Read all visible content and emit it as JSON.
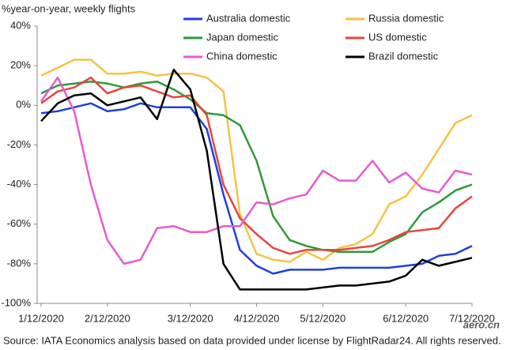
{
  "chart_data": {
    "type": "line",
    "y_label": "%year-on-year, weekly flights",
    "source": "Source: IATA Economics analysis based on data provided under license by FlightRadar24. All rights reserved.",
    "watermark": "aero.cn",
    "categories": [
      "1/12/2020",
      null,
      null,
      null,
      "2/12/2020",
      null,
      null,
      null,
      null,
      "3/12/2020",
      null,
      null,
      null,
      "4/12/2020",
      null,
      null,
      null,
      "5/12/2020",
      null,
      null,
      null,
      null,
      "6/12/2020",
      null,
      null,
      null,
      "7/12/2020"
    ],
    "ylim": [
      -100,
      40
    ],
    "yticks": [
      {
        "value": -100,
        "label": "-100%"
      },
      {
        "value": -80,
        "label": "-80%"
      },
      {
        "value": -60,
        "label": "-60%"
      },
      {
        "value": -40,
        "label": "-40%"
      },
      {
        "value": -20,
        "label": "-20%"
      },
      {
        "value": 0,
        "label": "0%"
      },
      {
        "value": 20,
        "label": "20%"
      },
      {
        "value": 40,
        "label": "40%"
      }
    ],
    "series": [
      {
        "name": "Australia domestic",
        "color": "#1f3fe0",
        "values": [
          -4,
          -3,
          -1,
          1,
          -3,
          -2,
          1,
          -1,
          -1,
          -1,
          -12,
          -45,
          -73,
          -81,
          -85,
          -83,
          -83,
          -83,
          -82,
          -82,
          -82,
          -82,
          -81,
          -80,
          -76,
          -75,
          -71
        ]
      },
      {
        "name": "Russia domestic",
        "color": "#f5c242",
        "values": [
          15,
          19,
          23,
          23,
          16,
          16,
          17,
          15,
          16,
          16,
          14,
          7,
          -55,
          -75,
          -78,
          -79,
          -74,
          -78,
          -72,
          -70,
          -65,
          -50,
          -46,
          -35,
          -22,
          -9,
          -5
        ]
      },
      {
        "name": "Japan domestic",
        "color": "#2e9a3a",
        "values": [
          6,
          10,
          11,
          12,
          11,
          9,
          11,
          12,
          8,
          3,
          -4,
          -5,
          -10,
          -28,
          -56,
          -68,
          -71,
          -73,
          -74,
          -74,
          -74,
          -69,
          -65,
          -54,
          -49,
          -43,
          -40
        ]
      },
      {
        "name": "US domestic",
        "color": "#e8453c",
        "values": [
          1,
          7,
          9,
          14,
          6,
          9,
          10,
          7,
          4,
          5,
          -5,
          -40,
          -57,
          -65,
          -72,
          -75,
          -73,
          -73,
          -73,
          -72,
          -71,
          -68,
          -64,
          -63,
          -62,
          -52,
          -46
        ]
      },
      {
        "name": "China domestic",
        "color": "#e85ad0",
        "values": [
          2,
          14,
          -3,
          -40,
          -68,
          -80,
          -78,
          -62,
          -61,
          -64,
          -64,
          -61,
          -61,
          -49,
          -50,
          -47,
          -45,
          -33,
          -38,
          -38,
          -28,
          -39,
          -34,
          -42,
          -44,
          -33,
          -35
        ]
      },
      {
        "name": "Brazil domestic",
        "color": "#000000",
        "values": [
          -8,
          1,
          5,
          6,
          0,
          2,
          4,
          -7,
          18,
          8,
          -23,
          -80,
          -93,
          -93,
          -93,
          -93,
          -93,
          -92,
          -91,
          -91,
          -90,
          -89,
          -86,
          -78,
          -81,
          -79,
          -77
        ]
      }
    ]
  }
}
